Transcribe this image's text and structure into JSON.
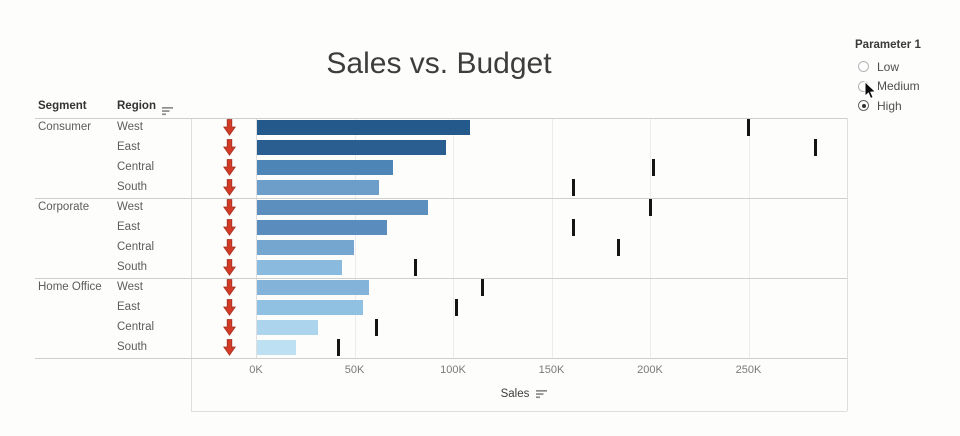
{
  "title": "Sales vs. Budget",
  "headers": {
    "segment": "Segment",
    "region": "Region"
  },
  "axis": {
    "title": "Sales",
    "ticks": [
      {
        "label": "0K",
        "value_k": 0
      },
      {
        "label": "50K",
        "value_k": 50
      },
      {
        "label": "100K",
        "value_k": 100
      },
      {
        "label": "150K",
        "value_k": 150
      },
      {
        "label": "200K",
        "value_k": 200
      },
      {
        "label": "250K",
        "value_k": 250
      }
    ],
    "max_k": 300
  },
  "parameter": {
    "title": "Parameter 1",
    "options": [
      "Low",
      "Medium",
      "High"
    ],
    "selected": "High"
  },
  "icons": {
    "region_sort": "sort-descending-icon",
    "sales_sort": "sort-descending-icon",
    "kpi": "red-down-arrow-icon",
    "cursor": "mouse-pointer-icon"
  },
  "colors": {
    "budget_mark": "#141414",
    "kpi_arrow": "#d13b28",
    "kpi_arrow_edge": "#a43020",
    "title_text": "#3d3d3d",
    "gridline": "#ececec",
    "divider": "#cfcfcf"
  },
  "chart_data": {
    "type": "bar",
    "orientation": "horizontal",
    "title": "Sales vs. Budget",
    "xlabel": "Sales",
    "value_unit": "thousands (K)",
    "x_range_k": [
      0,
      300
    ],
    "x_tick_labels": [
      "0K",
      "50K",
      "100K",
      "150K",
      "200K",
      "250K"
    ],
    "grid": true,
    "reference_mark_meaning": "Budget (black tick)",
    "kpi_meaning": "red down arrow = sales below budget",
    "rows": [
      {
        "segment": "Consumer",
        "region": "West",
        "sales_k": 108,
        "budget_k": 250,
        "bar_color": "#24598B",
        "kpi": "down"
      },
      {
        "segment": "Consumer",
        "region": "East",
        "sales_k": 96,
        "budget_k": 284,
        "bar_color": "#2A5E90",
        "kpi": "down"
      },
      {
        "segment": "Consumer",
        "region": "Central",
        "sales_k": 69,
        "budget_k": 202,
        "bar_color": "#4D85B7",
        "kpi": "down"
      },
      {
        "segment": "Consumer",
        "region": "South",
        "sales_k": 62,
        "budget_k": 161,
        "bar_color": "#6C9EC9",
        "kpi": "down"
      },
      {
        "segment": "Corporate",
        "region": "West",
        "sales_k": 87,
        "budget_k": 200,
        "bar_color": "#5C8FBE",
        "kpi": "down"
      },
      {
        "segment": "Corporate",
        "region": "East",
        "sales_k": 66,
        "budget_k": 161,
        "bar_color": "#5A8DBD",
        "kpi": "down"
      },
      {
        "segment": "Corporate",
        "region": "Central",
        "sales_k": 49,
        "budget_k": 184,
        "bar_color": "#74A6CF",
        "kpi": "down"
      },
      {
        "segment": "Corporate",
        "region": "South",
        "sales_k": 43,
        "budget_k": 81,
        "bar_color": "#8ABADD",
        "kpi": "down"
      },
      {
        "segment": "Home Office",
        "region": "West",
        "sales_k": 57,
        "budget_k": 115,
        "bar_color": "#84B3D9",
        "kpi": "down"
      },
      {
        "segment": "Home Office",
        "region": "East",
        "sales_k": 54,
        "budget_k": 102,
        "bar_color": "#90C1E3",
        "kpi": "down"
      },
      {
        "segment": "Home Office",
        "region": "Central",
        "sales_k": 31,
        "budget_k": 61,
        "bar_color": "#ACD4EC",
        "kpi": "down"
      },
      {
        "segment": "Home Office",
        "region": "South",
        "sales_k": 20,
        "budget_k": 42,
        "bar_color": "#BDE0F2",
        "kpi": "down"
      }
    ]
  }
}
